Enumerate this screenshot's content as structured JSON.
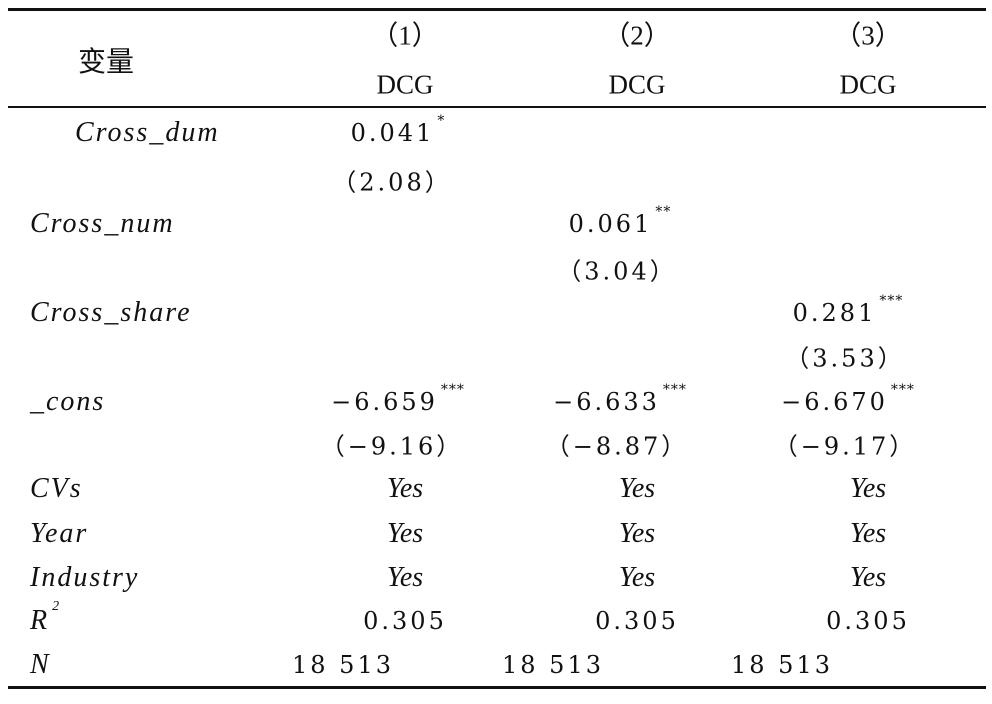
{
  "table": {
    "header": {
      "variable": "变量",
      "columns": [
        {
          "number": "（1）",
          "name": "DCG"
        },
        {
          "number": "（2）",
          "name": "DCG"
        },
        {
          "number": "（3）",
          "name": "DCG"
        }
      ]
    },
    "rows": [
      {
        "label": "Cross_dum",
        "cells": [
          {
            "coef": "0.041",
            "stars": "*",
            "t": "（2.08）"
          },
          null,
          null
        ]
      },
      {
        "label": "Cross_num",
        "cells": [
          null,
          {
            "coef": "0.061",
            "stars": "**",
            "t": "（3.04）"
          },
          null
        ]
      },
      {
        "label": "Cross_share",
        "cells": [
          null,
          null,
          {
            "coef": "0.281",
            "stars": "***",
            "t": "（3.53）"
          }
        ]
      },
      {
        "label": "_cons",
        "cells": [
          {
            "coef": "−6.659",
            "stars": "***",
            "t": "（−9.16）"
          },
          {
            "coef": "−6.633",
            "stars": "***",
            "t": "（−8.87）"
          },
          {
            "coef": "−6.670",
            "stars": "***",
            "t": "（−9.17）"
          }
        ]
      },
      {
        "label": "CVs",
        "cells": [
          "Yes",
          "Yes",
          "Yes"
        ]
      },
      {
        "label": "Year",
        "cells": [
          "Yes",
          "Yes",
          "Yes"
        ]
      },
      {
        "label": "Industry",
        "cells": [
          "Yes",
          "Yes",
          "Yes"
        ]
      },
      {
        "label": "R",
        "sup": "2",
        "cells": [
          "0.305",
          "0.305",
          "0.305"
        ]
      },
      {
        "label": "N",
        "cells": [
          "18 513",
          "18 513",
          "18 513"
        ]
      }
    ]
  }
}
